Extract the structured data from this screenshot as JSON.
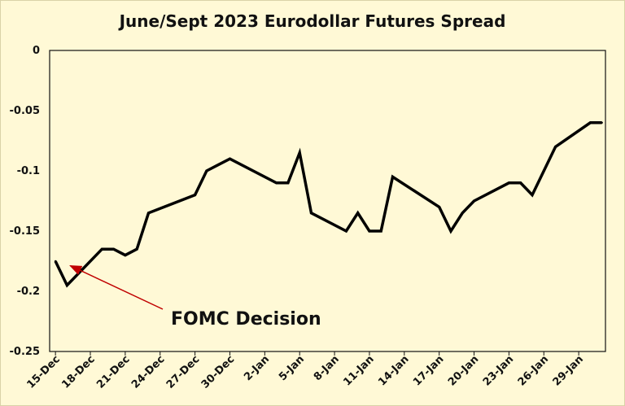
{
  "chart_data": {
    "type": "line",
    "title": "June/Sept 2023 Eurodollar Futures Spread",
    "xlabel": "",
    "ylabel": "",
    "ylim": [
      -0.25,
      0
    ],
    "yticks": [
      "0",
      "-0.05",
      "-0.1",
      "-0.15",
      "-0.2",
      "-0.25"
    ],
    "ytick_values": [
      0,
      -0.05,
      -0.1,
      -0.15,
      -0.2,
      -0.25
    ],
    "xticks": [
      "15-Dec",
      "18-Dec",
      "21-Dec",
      "24-Dec",
      "27-Dec",
      "30-Dec",
      "2-Jan",
      "5-Jan",
      "8-Jan",
      "11-Jan",
      "14-Jan",
      "17-Jan",
      "20-Jan",
      "23-Jan",
      "26-Jan",
      "29-Jan"
    ],
    "series": [
      {
        "color": "#000000",
        "x": [
          "2022-12-15",
          "2022-12-16",
          "2022-12-19",
          "2022-12-20",
          "2022-12-21",
          "2022-12-22",
          "2022-12-23",
          "2022-12-27",
          "2022-12-28",
          "2022-12-29",
          "2022-12-30",
          "2023-01-03",
          "2023-01-04",
          "2023-01-05",
          "2023-01-06",
          "2023-01-09",
          "2023-01-10",
          "2023-01-11",
          "2023-01-12",
          "2023-01-13",
          "2023-01-17",
          "2023-01-18",
          "2023-01-19",
          "2023-01-20",
          "2023-01-23",
          "2023-01-24",
          "2023-01-25",
          "2023-01-26",
          "2023-01-27",
          "2023-01-30",
          "2023-01-31"
        ],
        "values": [
          -0.175,
          -0.195,
          -0.165,
          -0.165,
          -0.17,
          -0.165,
          -0.135,
          -0.12,
          -0.1,
          -0.095,
          -0.09,
          -0.11,
          -0.11,
          -0.085,
          -0.135,
          -0.15,
          -0.135,
          -0.15,
          -0.15,
          -0.105,
          -0.13,
          -0.15,
          -0.135,
          -0.125,
          -0.11,
          -0.11,
          -0.12,
          -0.1,
          -0.08,
          -0.06,
          -0.06
        ]
      }
    ],
    "annotations": [
      {
        "text": "FOMC Decision",
        "points_to": "2022-12-16",
        "arrow_color": "#c00000"
      }
    ],
    "grid": false,
    "legend": "none"
  }
}
